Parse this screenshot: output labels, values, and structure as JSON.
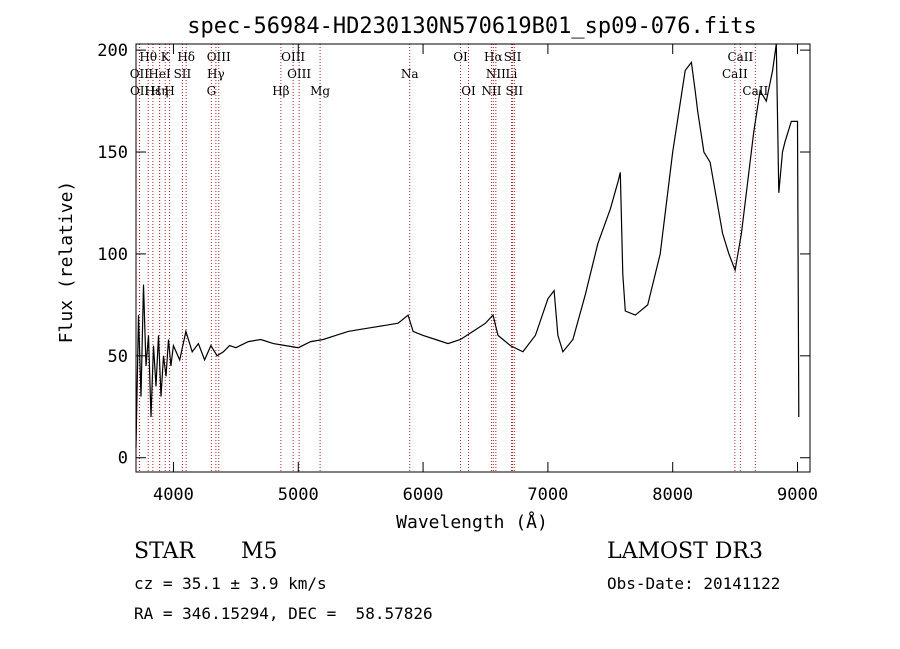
{
  "title": "spec-56984-HD230130N570619B01_sp09-076.fits",
  "info": {
    "class": "STAR",
    "subclass": "M5",
    "survey": "LAMOST DR3",
    "cz": "cz = 35.1 ± 3.9 km/s",
    "obs_date": "Obs-Date: 20141122",
    "radec": "RA = 346.15294, DEC =  58.57826"
  },
  "chart_data": {
    "type": "line",
    "title": "spec-56984-HD230130N570619B01_sp09-076.fits",
    "xlabel": "Wavelength (Å)",
    "ylabel": "Flux (relative)",
    "xlim": [
      3700,
      9100
    ],
    "ylim": [
      -7,
      203
    ],
    "xticks": [
      4000,
      5000,
      6000,
      7000,
      8000,
      9000
    ],
    "yticks": [
      0,
      50,
      100,
      150,
      200
    ],
    "line_color": "#000000",
    "marker_color": "#b22222",
    "series": [
      {
        "x": [
          3700,
          3720,
          3740,
          3760,
          3780,
          3800,
          3820,
          3840,
          3860,
          3880,
          3900,
          3920,
          3940,
          3960,
          3980,
          4000,
          4050,
          4100,
          4150,
          4200,
          4250,
          4300,
          4350,
          4400,
          4450,
          4500,
          4600,
          4700,
          4800,
          4900,
          5000,
          5100,
          5200,
          5300,
          5400,
          5500,
          5600,
          5700,
          5800,
          5880,
          5920,
          6000,
          6100,
          6200,
          6300,
          6400,
          6500,
          6560,
          6600,
          6700,
          6800,
          6900,
          7000,
          7050,
          7080,
          7120,
          7200,
          7300,
          7400,
          7500,
          7560,
          7580,
          7600,
          7620,
          7700,
          7800,
          7900,
          8000,
          8100,
          8150,
          8180,
          8200,
          8250,
          8300,
          8400,
          8450,
          8500,
          8550,
          8600,
          8650,
          8700,
          8750,
          8800,
          8830,
          8850,
          8880,
          8900,
          8950,
          9000,
          9010
        ],
        "y": [
          5,
          70,
          30,
          85,
          45,
          60,
          20,
          55,
          35,
          60,
          30,
          50,
          40,
          58,
          45,
          55,
          48,
          62,
          52,
          56,
          48,
          55,
          50,
          52,
          55,
          54,
          57,
          58,
          56,
          55,
          54,
          57,
          58,
          60,
          62,
          63,
          64,
          65,
          66,
          70,
          62,
          60,
          58,
          56,
          58,
          62,
          66,
          70,
          60,
          55,
          52,
          60,
          78,
          82,
          60,
          52,
          58,
          80,
          105,
          122,
          135,
          140,
          90,
          72,
          70,
          75,
          100,
          150,
          190,
          194,
          180,
          170,
          150,
          145,
          110,
          100,
          92,
          110,
          135,
          160,
          180,
          175,
          190,
          205,
          130,
          150,
          155,
          165,
          165,
          20
        ]
      }
    ],
    "lines": [
      {
        "label": "Hθ",
        "row": 1,
        "x": 3798
      },
      {
        "label": "K",
        "row": 1,
        "x": 3934
      },
      {
        "label": "Hδ",
        "row": 1,
        "x": 4102
      },
      {
        "label": "OIII",
        "row": 1,
        "x": 4363
      },
      {
        "label": "OIII",
        "row": 1,
        "x": 4959
      },
      {
        "label": "OI",
        "row": 1,
        "x": 6300
      },
      {
        "label": "Hα",
        "row": 1,
        "x": 6563
      },
      {
        "label": "SII",
        "row": 1,
        "x": 6717
      },
      {
        "label": "CaII",
        "row": 1,
        "x": 8542
      },
      {
        "label": "OII",
        "row": 2,
        "x": 3727
      },
      {
        "label": "HeI",
        "row": 2,
        "x": 3889
      },
      {
        "label": "SII",
        "row": 2,
        "x": 4072
      },
      {
        "label": "Hγ",
        "row": 2,
        "x": 4340
      },
      {
        "label": "OIII",
        "row": 2,
        "x": 5007
      },
      {
        "label": "Na",
        "row": 2,
        "x": 5893
      },
      {
        "label": "NII",
        "row": 2,
        "x": 6583
      },
      {
        "label": "Li",
        "row": 2,
        "x": 6708
      },
      {
        "label": "CaII",
        "row": 2,
        "x": 8498
      },
      {
        "label": "OII",
        "row": 3,
        "x": 3729
      },
      {
        "label": "Hε",
        "row": 3,
        "x": 3835
      },
      {
        "label": "Hη",
        "row": 3,
        "x": 3889
      },
      {
        "label": "H",
        "row": 3,
        "x": 3969
      },
      {
        "label": "G",
        "row": 3,
        "x": 4304
      },
      {
        "label": "Hβ",
        "row": 3,
        "x": 4861
      },
      {
        "label": "Mg",
        "row": 3,
        "x": 5175
      },
      {
        "label": "OI",
        "row": 3,
        "x": 6364
      },
      {
        "label": "NII",
        "row": 3,
        "x": 6548
      },
      {
        "label": "SII",
        "row": 3,
        "x": 6731
      },
      {
        "label": "CaII",
        "row": 3,
        "x": 8662
      }
    ]
  }
}
